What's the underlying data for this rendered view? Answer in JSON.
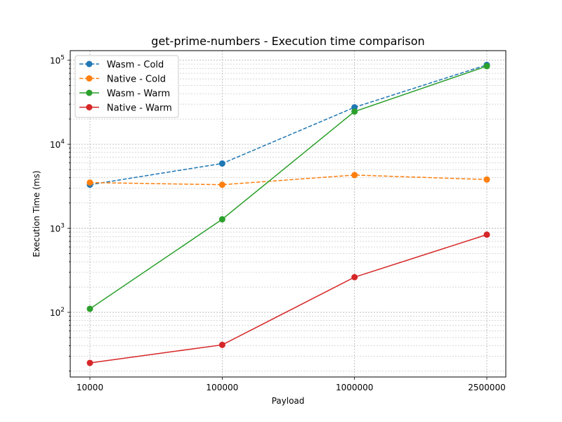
{
  "chart_data": {
    "type": "line",
    "title": "get-prime-numbers - Execution time comparison",
    "xlabel": "Payload",
    "ylabel": "Execution Time (ms)",
    "categories": [
      "10000",
      "100000",
      "1000000",
      "2500000"
    ],
    "y_scale": "log",
    "ylim": [
      17,
      130000
    ],
    "y_tick_labels": [
      {
        "value": 100,
        "base": "10",
        "exp": "2"
      },
      {
        "value": 1000,
        "base": "10",
        "exp": "3"
      },
      {
        "value": 10000,
        "base": "10",
        "exp": "4"
      },
      {
        "value": 100000,
        "base": "10",
        "exp": "5"
      }
    ],
    "grid": true,
    "legend_position": "top-left",
    "series": [
      {
        "name": "Wasm - Cold",
        "color": "#1f77b4",
        "dash": true,
        "values": [
          3300,
          5900,
          27500,
          88000
        ]
      },
      {
        "name": "Native - Cold",
        "color": "#ff7f0e",
        "dash": true,
        "values": [
          3500,
          3300,
          4300,
          3800
        ]
      },
      {
        "name": "Wasm - Warm",
        "color": "#2ca02c",
        "dash": false,
        "values": [
          110,
          1280,
          24500,
          85000
        ]
      },
      {
        "name": "Native - Warm",
        "color": "#d62728",
        "dash": false,
        "values": [
          25,
          41,
          262,
          840
        ]
      }
    ]
  }
}
